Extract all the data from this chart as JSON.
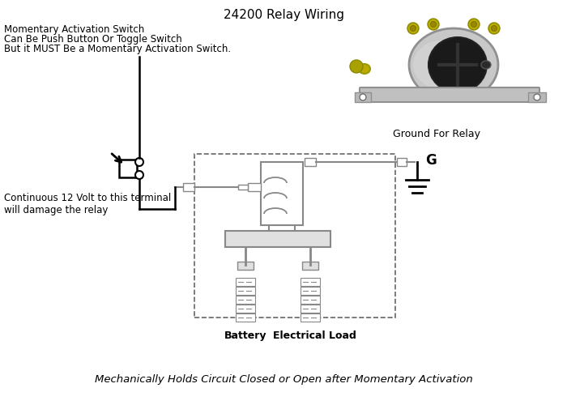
{
  "title": "24200 Relay Wiring",
  "footer": "Mechanically Holds Circuit Closed or Open after Momentary Activation",
  "label_switch_line1": "Momentary Activation Switch",
  "label_switch_line2": "Can Be Push Button Or Toggle Switch",
  "label_switch_line3": "But it MUST Be a Momentary Activation Switch.",
  "label_terminal": "Continuous 12 Volt to this terminal\nwill damage the relay",
  "label_ground": "Ground For Relay",
  "label_battery": "Battery",
  "label_load": "Electrical Load",
  "label_G": "G",
  "bg_color": "#ffffff",
  "line_color": "#000000",
  "dashed_color": "#666666",
  "gray_color": "#888888",
  "light_gray": "#cccccc",
  "dark_gray": "#444444"
}
